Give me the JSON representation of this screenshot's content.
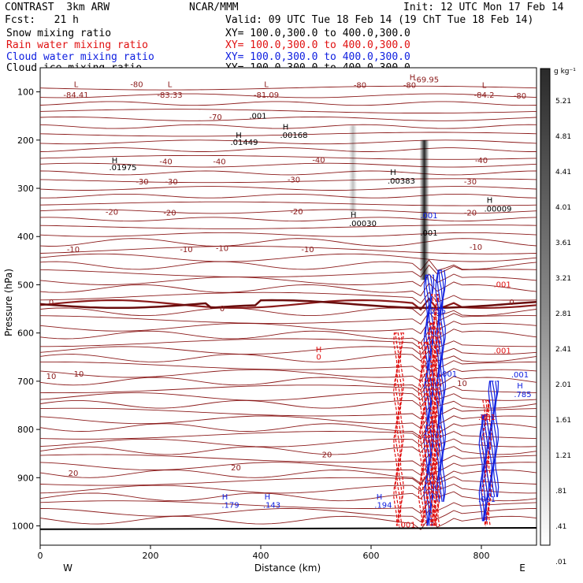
{
  "header": {
    "model": "CONTRAST  3km ARW",
    "org": "NCAR/MMM",
    "init": "Init: 12 UTC Mon 17 Feb 14",
    "fcst": "Fcst:   21 h",
    "valid": "Valid: 09 UTC Tue 18 Feb 14 (19 ChT Tue 18 Feb 14)",
    "fields": [
      {
        "name": "Snow mixing ratio",
        "xy": "XY= 100.0,300.0 to 400.0,300.0",
        "color": "#000000"
      },
      {
        "name": "Rain water mixing ratio",
        "xy": "XY= 100.0,300.0 to 400.0,300.0",
        "color": "#e01010"
      },
      {
        "name": "Cloud water mixing ratio",
        "xy": "XY= 100.0,300.0 to 400.0,300.0",
        "color": "#1020e0"
      },
      {
        "name": "Cloud ice mixing ratio",
        "xy": "XY= 100.0,300.0 to 400.0,300.0",
        "color": "#000000"
      }
    ]
  },
  "chart_data": {
    "type": "contour cross-section",
    "xlabel": "Distance (km)",
    "ylabel": "Pressure (hPa)",
    "xlim": [
      0,
      900
    ],
    "ylim": [
      1040,
      50
    ],
    "x_ticks": [
      0,
      200,
      400,
      600,
      800
    ],
    "y_ticks": [
      100,
      200,
      300,
      400,
      500,
      600,
      700,
      800,
      900,
      1000
    ],
    "x_end_labels": {
      "left": "W",
      "right": "E"
    },
    "colorbar": {
      "unit": "g kg⁻¹",
      "levels": [
        "5.21",
        "4.81",
        "4.41",
        "4.01",
        "3.61",
        "3.21",
        "2.81",
        "2.41",
        "2.01",
        "1.61",
        "1.21",
        ".81",
        ".41",
        ".01"
      ]
    },
    "temperature_isotherms": [
      {
        "label": "-80",
        "p": 100
      },
      {
        "label": "-70",
        "p": 160
      },
      {
        "label": "-40",
        "p": 250
      },
      {
        "label": "-30",
        "p": 290
      },
      {
        "label": "-20",
        "p": 355
      },
      {
        "label": "-10",
        "p": 430
      },
      {
        "label": "0",
        "p": 540
      },
      {
        "label": "10",
        "p": 695
      },
      {
        "label": "20",
        "p": 890
      }
    ],
    "annotations": [
      {
        "text": "L",
        "x": 65,
        "p": 90,
        "color": "#8b1a1a"
      },
      {
        "text": "-84.41",
        "x": 65,
        "p": 112,
        "color": "#8b1a1a"
      },
      {
        "text": "-80",
        "x": 175,
        "p": 90,
        "color": "#8b1a1a"
      },
      {
        "text": "L",
        "x": 235,
        "p": 90,
        "color": "#8b1a1a"
      },
      {
        "text": "-83.33",
        "x": 235,
        "p": 112,
        "color": "#8b1a1a"
      },
      {
        "text": "L",
        "x": 410,
        "p": 90,
        "color": "#8b1a1a"
      },
      {
        "text": "-81.09",
        "x": 410,
        "p": 112,
        "color": "#8b1a1a"
      },
      {
        "text": "-80",
        "x": 580,
        "p": 92,
        "color": "#8b1a1a"
      },
      {
        "text": "-80",
        "x": 670,
        "p": 92,
        "color": "#8b1a1a"
      },
      {
        "text": "H",
        "x": 675,
        "p": 75,
        "color": "#8b1a1a"
      },
      {
        "text": "-69.95",
        "x": 700,
        "p": 80,
        "color": "#8b1a1a"
      },
      {
        "text": "L",
        "x": 805,
        "p": 92,
        "color": "#8b1a1a"
      },
      {
        "text": "-84.2",
        "x": 805,
        "p": 112,
        "color": "#8b1a1a"
      },
      {
        "text": "-80",
        "x": 870,
        "p": 114,
        "color": "#8b1a1a"
      },
      {
        "text": "-70",
        "x": 318,
        "p": 158,
        "color": "#8b1a1a"
      },
      {
        "text": ".001",
        "x": 395,
        "p": 155,
        "color": "#000000"
      },
      {
        "text": "H",
        "x": 360,
        "p": 195,
        "color": "#000000"
      },
      {
        "text": ".01449",
        "x": 370,
        "p": 210,
        "color": "#000000"
      },
      {
        "text": "H",
        "x": 445,
        "p": 178,
        "color": "#000000"
      },
      {
        "text": ".00168",
        "x": 460,
        "p": 195,
        "color": "#000000"
      },
      {
        "text": "H",
        "x": 135,
        "p": 248,
        "color": "#000000"
      },
      {
        "text": ".01975",
        "x": 150,
        "p": 262,
        "color": "#000000"
      },
      {
        "text": "-40",
        "x": 228,
        "p": 250,
        "color": "#8b1a1a"
      },
      {
        "text": "-40",
        "x": 325,
        "p": 250,
        "color": "#8b1a1a"
      },
      {
        "text": "-40",
        "x": 505,
        "p": 247,
        "color": "#8b1a1a"
      },
      {
        "text": "-40",
        "x": 800,
        "p": 248,
        "color": "#8b1a1a"
      },
      {
        "text": "-30",
        "x": 185,
        "p": 292,
        "color": "#8b1a1a"
      },
      {
        "text": "-30",
        "x": 238,
        "p": 292,
        "color": "#8b1a1a"
      },
      {
        "text": "-30",
        "x": 460,
        "p": 288,
        "color": "#8b1a1a"
      },
      {
        "text": "-30",
        "x": 780,
        "p": 292,
        "color": "#8b1a1a"
      },
      {
        "text": "H",
        "x": 640,
        "p": 272,
        "color": "#000000"
      },
      {
        "text": ".00383",
        "x": 655,
        "p": 290,
        "color": "#000000"
      },
      {
        "text": "-20",
        "x": 130,
        "p": 355,
        "color": "#8b1a1a"
      },
      {
        "text": "-20",
        "x": 235,
        "p": 356,
        "color": "#8b1a1a"
      },
      {
        "text": "-20",
        "x": 465,
        "p": 354,
        "color": "#8b1a1a"
      },
      {
        "text": "-20",
        "x": 780,
        "p": 356,
        "color": "#8b1a1a"
      },
      {
        "text": "H",
        "x": 815,
        "p": 330,
        "color": "#000000"
      },
      {
        "text": ".00009",
        "x": 830,
        "p": 348,
        "color": "#000000"
      },
      {
        "text": "H",
        "x": 568,
        "p": 360,
        "color": "#000000"
      },
      {
        "text": ".00030",
        "x": 585,
        "p": 378,
        "color": "#000000"
      },
      {
        "text": ".001",
        "x": 705,
        "p": 362,
        "color": "#1020e0"
      },
      {
        "text": ".001",
        "x": 705,
        "p": 398,
        "color": "#000000"
      },
      {
        "text": "-10",
        "x": 60,
        "p": 432,
        "color": "#8b1a1a"
      },
      {
        "text": "-10",
        "x": 265,
        "p": 432,
        "color": "#8b1a1a"
      },
      {
        "text": "-10",
        "x": 330,
        "p": 430,
        "color": "#8b1a1a"
      },
      {
        "text": "-10",
        "x": 485,
        "p": 432,
        "color": "#8b1a1a"
      },
      {
        "text": "-10",
        "x": 790,
        "p": 427,
        "color": "#8b1a1a"
      },
      {
        "text": ".001",
        "x": 838,
        "p": 505,
        "color": "#e01010"
      },
      {
        "text": "0",
        "x": 20,
        "p": 542,
        "color": "#8b1a1a"
      },
      {
        "text": "0",
        "x": 330,
        "p": 555,
        "color": "#8b1a1a"
      },
      {
        "text": "0",
        "x": 855,
        "p": 542,
        "color": "#8b1a1a"
      },
      {
        "text": ".255",
        "x": 720,
        "p": 560,
        "color": "#1020e0"
      },
      {
        "text": "H",
        "x": 505,
        "p": 640,
        "color": "#e01010"
      },
      {
        "text": "0",
        "x": 505,
        "p": 655,
        "color": "#e01010"
      },
      {
        "text": ".001",
        "x": 838,
        "p": 642,
        "color": "#e01010"
      },
      {
        "text": "10",
        "x": 20,
        "p": 695,
        "color": "#8b1a1a"
      },
      {
        "text": "10",
        "x": 70,
        "p": 690,
        "color": "#8b1a1a"
      },
      {
        "text": ".001",
        "x": 740,
        "p": 690,
        "color": "#1020e0"
      },
      {
        "text": "10",
        "x": 765,
        "p": 710,
        "color": "#8b1a1a"
      },
      {
        "text": ".001",
        "x": 870,
        "p": 692,
        "color": "#1020e0"
      },
      {
        "text": "H",
        "x": 870,
        "p": 715,
        "color": "#1020e0"
      },
      {
        "text": ".785",
        "x": 875,
        "p": 733,
        "color": "#1020e0"
      },
      {
        "text": ".001",
        "x": 810,
        "p": 780,
        "color": "#e01010"
      },
      {
        "text": "2",
        "x": 698,
        "p": 822,
        "color": "#e01010"
      },
      {
        "text": "20",
        "x": 60,
        "p": 896,
        "color": "#8b1a1a"
      },
      {
        "text": "20",
        "x": 355,
        "p": 885,
        "color": "#8b1a1a"
      },
      {
        "text": "20",
        "x": 520,
        "p": 858,
        "color": "#8b1a1a"
      },
      {
        "text": "H",
        "x": 335,
        "p": 945,
        "color": "#1020e0"
      },
      {
        "text": ".179",
        "x": 345,
        "p": 962,
        "color": "#1020e0"
      },
      {
        "text": "H",
        "x": 412,
        "p": 945,
        "color": "#1020e0"
      },
      {
        "text": ".143",
        "x": 420,
        "p": 962,
        "color": "#1020e0"
      },
      {
        "text": "H",
        "x": 615,
        "p": 945,
        "color": "#1020e0"
      },
      {
        "text": ".194",
        "x": 622,
        "p": 962,
        "color": "#1020e0"
      },
      {
        "text": ".001",
        "x": 810,
        "p": 950,
        "color": "#1020e0"
      },
      {
        "text": ".001",
        "x": 665,
        "p": 1003,
        "color": "#e01010"
      }
    ]
  }
}
